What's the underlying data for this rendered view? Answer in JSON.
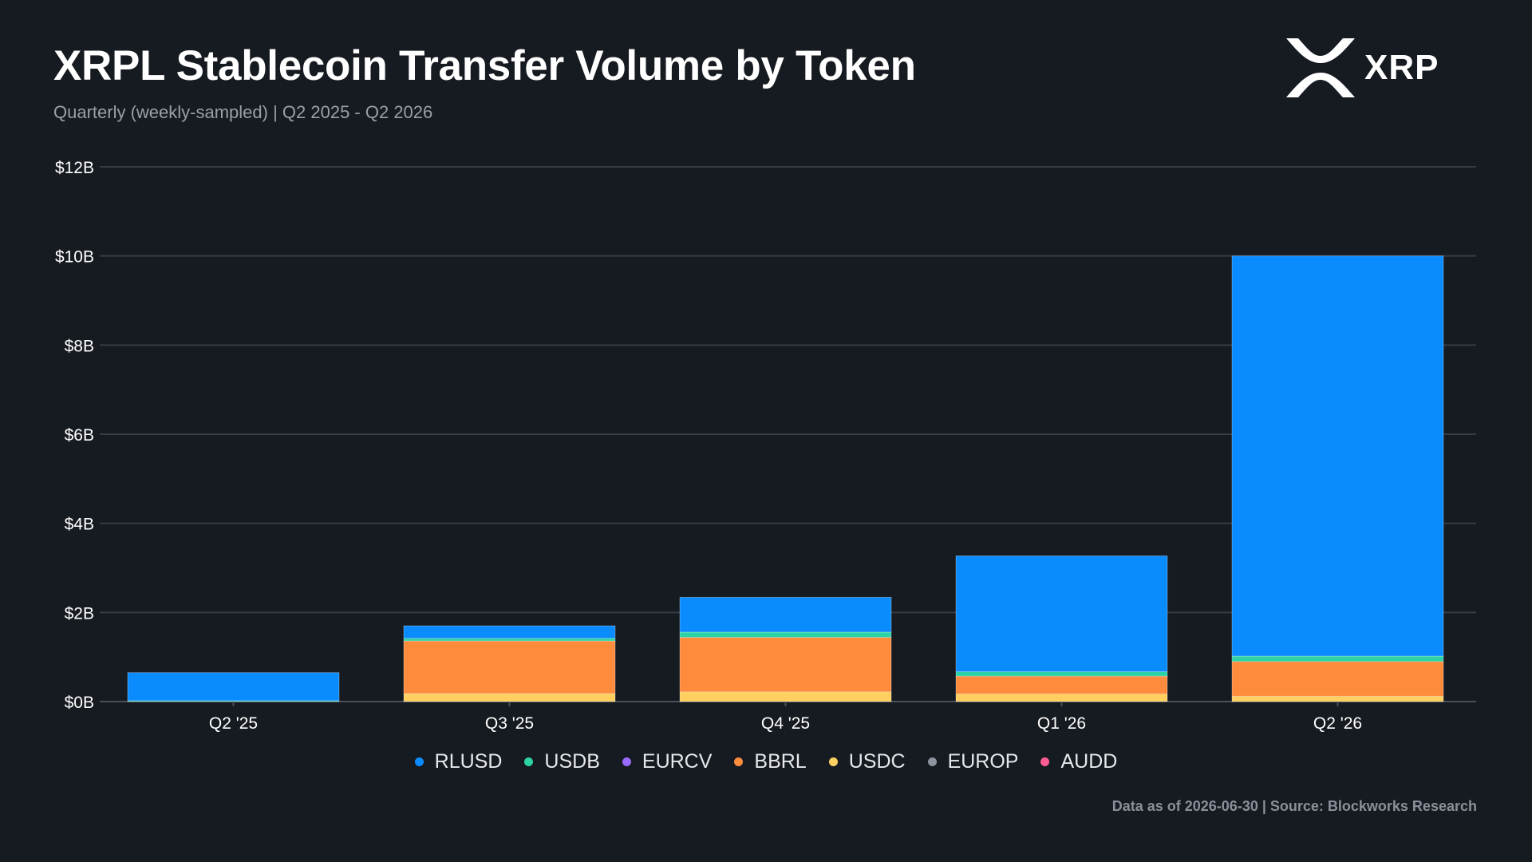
{
  "title": "XRPL Stablecoin Transfer Volume by Token",
  "subtitle": "Quarterly (weekly-sampled) | Q2 2025 - Q2 2026",
  "logo": {
    "text": "XRP",
    "icon": "xrp-logo-icon"
  },
  "footer": "Data as of 2026-06-30 | Source: Blockworks Research",
  "colors": {
    "background": "#161a21",
    "grid": "#363b44",
    "RLUSD": "#0a8cff",
    "USDB": "#2ed3a5",
    "EURCV": "#9a6bff",
    "BBRL": "#ff8c3d",
    "USDC": "#ffd060",
    "EUROP": "#8d94a0",
    "AUDD": "#ff5c93"
  },
  "chart_data": {
    "type": "bar",
    "stacked": true,
    "categories": [
      "Q2 '25",
      "Q3 '25",
      "Q4 '25",
      "Q1 '26",
      "Q2 '26"
    ],
    "y_tick_labels": [
      "$0B",
      "$2B",
      "$4B",
      "$6B",
      "$8B",
      "$10B",
      "$12B"
    ],
    "ylim": [
      0,
      12
    ],
    "y_unit": "$B",
    "grid": true,
    "legend_position": "bottom",
    "series": [
      {
        "name": "USDC",
        "values": [
          0.0,
          0.18,
          0.22,
          0.17,
          0.12
        ]
      },
      {
        "name": "BBRL",
        "values": [
          0.0,
          1.18,
          1.22,
          0.4,
          0.78
        ]
      },
      {
        "name": "EURCV",
        "values": [
          0.0,
          0.0,
          0.0,
          0.0,
          0.0
        ]
      },
      {
        "name": "EUROP",
        "values": [
          0.0,
          0.0,
          0.0,
          0.0,
          0.0
        ]
      },
      {
        "name": "AUDD",
        "values": [
          0.0,
          0.0,
          0.0,
          0.0,
          0.0
        ]
      },
      {
        "name": "USDB",
        "values": [
          0.02,
          0.06,
          0.12,
          0.1,
          0.12
        ]
      },
      {
        "name": "RLUSD",
        "values": [
          0.63,
          0.28,
          0.78,
          2.6,
          8.98
        ]
      }
    ],
    "legend_order": [
      "RLUSD",
      "USDB",
      "EURCV",
      "BBRL",
      "USDC",
      "EUROP",
      "AUDD"
    ]
  }
}
